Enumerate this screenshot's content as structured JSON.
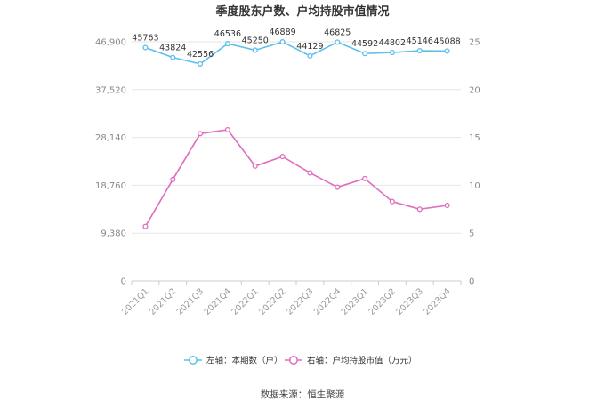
{
  "chart_data": {
    "type": "line",
    "title": "季度股东户数、户均持股市值情况",
    "categories": [
      "2021Q1",
      "2021Q2",
      "2021Q3",
      "2021Q4",
      "2022Q1",
      "2022Q2",
      "2022Q3",
      "2022Q4",
      "2023Q1",
      "2023Q2",
      "2023Q3",
      "2023Q4"
    ],
    "series": [
      {
        "name": "左轴：本期数（户）",
        "axis": "left",
        "color": "#5bc0eb",
        "values": [
          45763,
          43824,
          42556,
          46536,
          45250,
          46889,
          44129,
          46825,
          44592,
          44802,
          45146,
          45088
        ],
        "show_labels": true
      },
      {
        "name": "右轴：户均持股市值（万元）",
        "axis": "right",
        "color": "#e06cbf",
        "values": [
          5.7,
          10.6,
          15.4,
          15.8,
          12.0,
          13.0,
          11.3,
          9.8,
          10.7,
          8.3,
          7.5,
          7.9
        ],
        "show_labels": false
      }
    ],
    "left_axis": {
      "ticks": [
        0,
        9380,
        18760,
        28140,
        37520,
        46900
      ],
      "tick_labels": [
        "0",
        "9,380",
        "18,760",
        "28,140",
        "37,520",
        "46,900"
      ],
      "ylim": [
        0,
        46900
      ]
    },
    "right_axis": {
      "ticks": [
        0,
        5,
        10,
        15,
        20,
        25
      ],
      "tick_labels": [
        "0",
        "5",
        "10",
        "15",
        "20",
        "25"
      ],
      "ylim": [
        0,
        25
      ]
    },
    "grid": true,
    "legend_position": "bottom"
  },
  "source": "数据来源：恒生聚源"
}
